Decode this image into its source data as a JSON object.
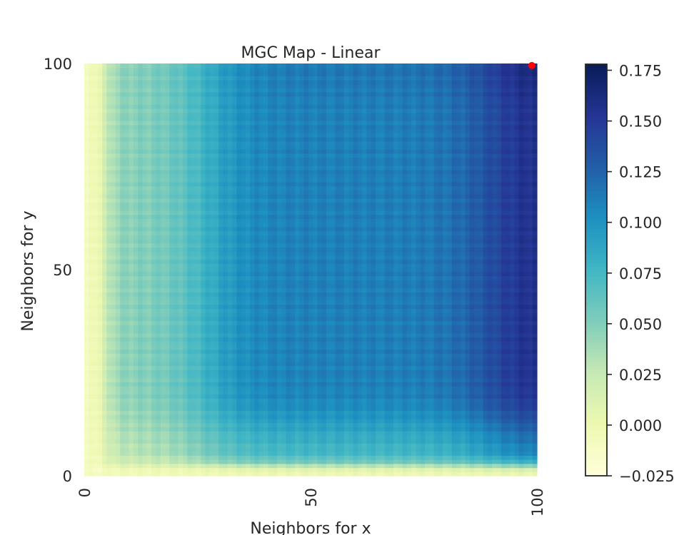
{
  "chart_data": {
    "type": "heatmap",
    "title": "MGC Map - Linear",
    "xlabel": "Neighbors for x",
    "ylabel": "Neighbors for y",
    "xlim": [
      0,
      100
    ],
    "ylim": [
      0,
      100
    ],
    "x_ticks": [
      "0",
      "50",
      "100"
    ],
    "y_ticks": [
      "0",
      "50",
      "100"
    ],
    "colormap": "YlGnBu",
    "colormap_stops": [
      "#ffffd9",
      "#edf8b1",
      "#c7e9b4",
      "#7fcdbb",
      "#41b6c4",
      "#1d91c0",
      "#225ea8",
      "#253494",
      "#081d58"
    ],
    "vmin": -0.025,
    "vmax": 0.178,
    "colorbar_ticks": [
      "−0.025",
      "0.000",
      "0.025",
      "0.050",
      "0.075",
      "0.100",
      "0.125",
      "0.150",
      "0.175"
    ],
    "colorbar_tick_values": [
      -0.025,
      0.0,
      0.025,
      0.05,
      0.075,
      0.1,
      0.125,
      0.15,
      0.175
    ],
    "optimal_scale": {
      "x": 100,
      "y": 100,
      "value": 0.17,
      "color": "#ff0000"
    },
    "approx_value_summary": {
      "x_near_0": -0.01,
      "x_10_to_25_mid_y": 0.06,
      "x_40_to_80_mid_y": 0.13,
      "x_90_to_100_mid_y": 0.15,
      "y_near_0": 0.005,
      "top_right": 0.17
    }
  }
}
